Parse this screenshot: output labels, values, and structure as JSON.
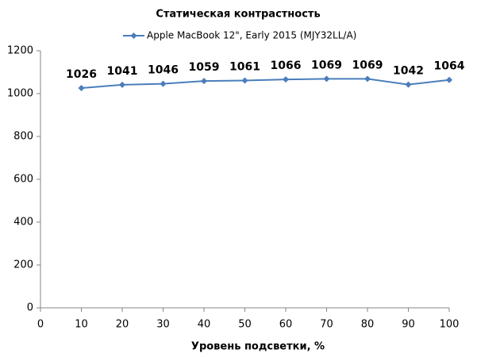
{
  "chart_data": {
    "type": "line",
    "title": "Статическая контрастность",
    "x_label": "Уровень подсветки, %",
    "x": [
      10,
      20,
      30,
      40,
      50,
      60,
      70,
      80,
      90,
      100
    ],
    "series": [
      {
        "name": "Apple MacBook 12\", Early 2015 (MJY32LL/A)",
        "color": "#4a7ebb",
        "values": [
          1026,
          1041,
          1046,
          1059,
          1061,
          1066,
          1069,
          1069,
          1042,
          1064
        ]
      }
    ],
    "xlim": [
      0,
      100
    ],
    "xticks": [
      0,
      10,
      20,
      30,
      40,
      50,
      60,
      70,
      80,
      90,
      100
    ],
    "ylim": [
      0,
      1200
    ],
    "yticks": [
      0,
      200,
      400,
      600,
      800,
      1000,
      1200
    ],
    "grid": false,
    "legend": "top",
    "data_labels": true
  }
}
